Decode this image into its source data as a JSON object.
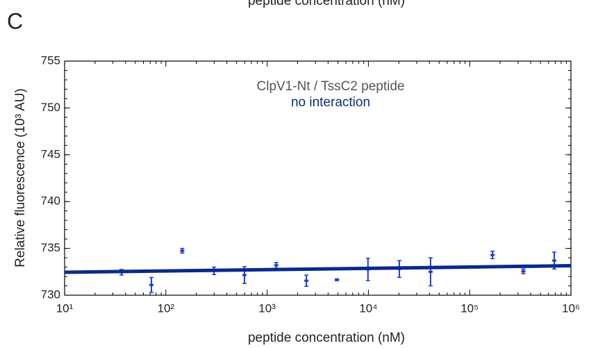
{
  "panel_label": "C",
  "cut_off_text": "peptide concentration (nM)",
  "chart_data": {
    "type": "scatter",
    "xlabel": "peptide concentration (nM)",
    "ylabel": "Relative fluorescence (10³ AU)",
    "annotations": [
      {
        "text": "ClpV1-Nt / TssC2 peptide",
        "color": "#555555"
      },
      {
        "text": "no interaction",
        "color": "#0b2d7a"
      }
    ],
    "xscale": "log",
    "xlim": [
      10,
      1000000
    ],
    "xticks": [
      {
        "value": 10,
        "label": "10¹"
      },
      {
        "value": 100,
        "label": "10²"
      },
      {
        "value": 1000,
        "label": "10³"
      },
      {
        "value": 10000,
        "label": "10⁴"
      },
      {
        "value": 100000,
        "label": "10⁵"
      },
      {
        "value": 1000000,
        "label": "10⁶"
      }
    ],
    "ylim": [
      730,
      755
    ],
    "yticks": [
      730,
      735,
      740,
      745,
      750,
      755
    ],
    "minor_ticks": true,
    "color": "#1f3bd6",
    "x": [
      36.5,
      72,
      145,
      299,
      597,
      1230,
      2440,
      4890,
      9900,
      20200,
      41100,
      83600,
      168000,
      339000,
      684000
    ],
    "values": [
      732.45,
      731.1,
      734.75,
      732.6,
      732.15,
      733.2,
      731.55,
      731.65,
      732.75,
      732.8,
      732.5,
      732.95,
      734.3,
      732.55,
      733.7
    ],
    "errors": [
      0.3,
      0.8,
      0.25,
      0.4,
      0.9,
      0.3,
      0.6,
      0.1,
      1.2,
      0.9,
      1.5,
      0.05,
      0.4,
      0.25,
      0.9
    ],
    "fit": {
      "color": "#0a2a8a",
      "x": [
        10,
        1000000
      ],
      "values": [
        732.45,
        733.15
      ]
    }
  }
}
